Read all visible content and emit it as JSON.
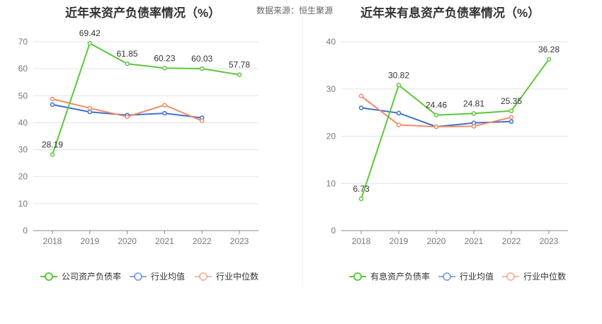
{
  "source": "数据来源：恒生聚源",
  "chart_data": [
    {
      "type": "line",
      "title": "近年来资产负债率情况（%）",
      "categories": [
        "2018",
        "2019",
        "2020",
        "2021",
        "2022",
        "2023"
      ],
      "ylim": [
        0,
        70
      ],
      "yticks": [
        0,
        10,
        20,
        30,
        40,
        50,
        60,
        70
      ],
      "grid": true,
      "legend_position": "bottom",
      "series": [
        {
          "name": "公司资产负债率",
          "color": "#5cc83a",
          "labels": true,
          "values": [
            28.19,
            69.42,
            61.85,
            60.23,
            60.03,
            57.78
          ]
        },
        {
          "name": "行业均值",
          "color": "#3f6fd3",
          "labels": false,
          "values": [
            46.7,
            44.0,
            42.8,
            43.5,
            41.8,
            null
          ]
        },
        {
          "name": "行业中位数",
          "color": "#f08c68",
          "labels": false,
          "values": [
            48.8,
            45.4,
            42.2,
            46.5,
            40.7,
            null
          ]
        }
      ]
    },
    {
      "type": "line",
      "title": "近年来有息资产负债率情况（%）",
      "categories": [
        "2018",
        "2019",
        "2020",
        "2021",
        "2022",
        "2023"
      ],
      "ylim": [
        0,
        40
      ],
      "yticks": [
        0,
        10,
        20,
        30,
        40
      ],
      "grid": true,
      "legend_position": "bottom",
      "series": [
        {
          "name": "有息资产负债率",
          "color": "#5cc83a",
          "labels": true,
          "values": [
            6.73,
            30.82,
            24.46,
            24.81,
            25.35,
            36.28
          ]
        },
        {
          "name": "行业均值",
          "color": "#3f6fd3",
          "labels": false,
          "values": [
            26.0,
            24.9,
            22.0,
            22.8,
            23.1,
            null
          ]
        },
        {
          "name": "行业中位数",
          "color": "#f08c68",
          "labels": false,
          "values": [
            28.5,
            22.4,
            22.0,
            22.1,
            24.0,
            null
          ]
        }
      ]
    }
  ]
}
